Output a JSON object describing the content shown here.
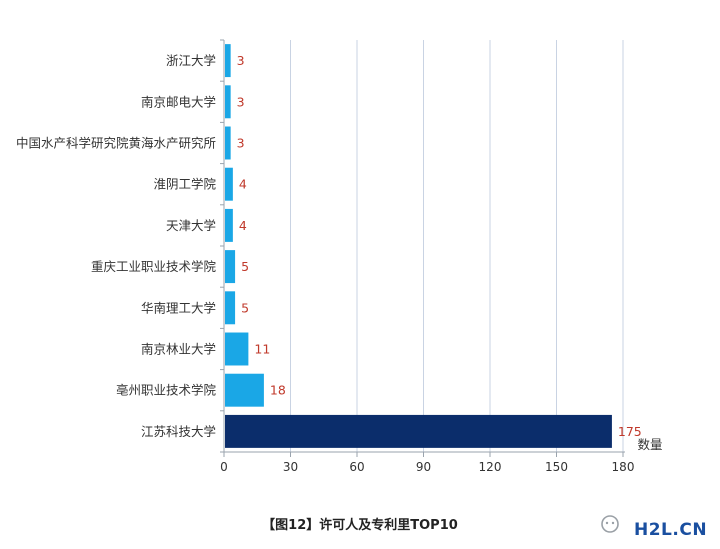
{
  "chart_data": {
    "type": "bar",
    "orientation": "horizontal",
    "categories": [
      "浙江大学",
      "南京邮电大学",
      "中国水产科学研究院黄海水产研究所",
      "淮阴工学院",
      "天津大学",
      "重庆工业职业技术学院",
      "华南理工大学",
      "南京林业大学",
      "亳州职业技术学院",
      "江苏科技大学"
    ],
    "values": [
      3,
      3,
      3,
      4,
      4,
      5,
      5,
      11,
      18,
      175
    ],
    "xlabel": "数量",
    "xlim": [
      0,
      180
    ],
    "xticks": [
      0,
      30,
      60,
      90,
      120,
      150,
      180
    ],
    "grid": "vertical",
    "colors": {
      "bar": "#1aa7e6",
      "highlight_bar": "#0b2d6b",
      "value_label": "#c0392b",
      "grid": "#c9d3e3",
      "axis": "#9aa3ad"
    },
    "highlight_index": 9
  },
  "caption": "【图12】许可人及专利里TOP10",
  "watermark": {
    "icon": "wechat-icon",
    "text": "H2L.CN"
  }
}
